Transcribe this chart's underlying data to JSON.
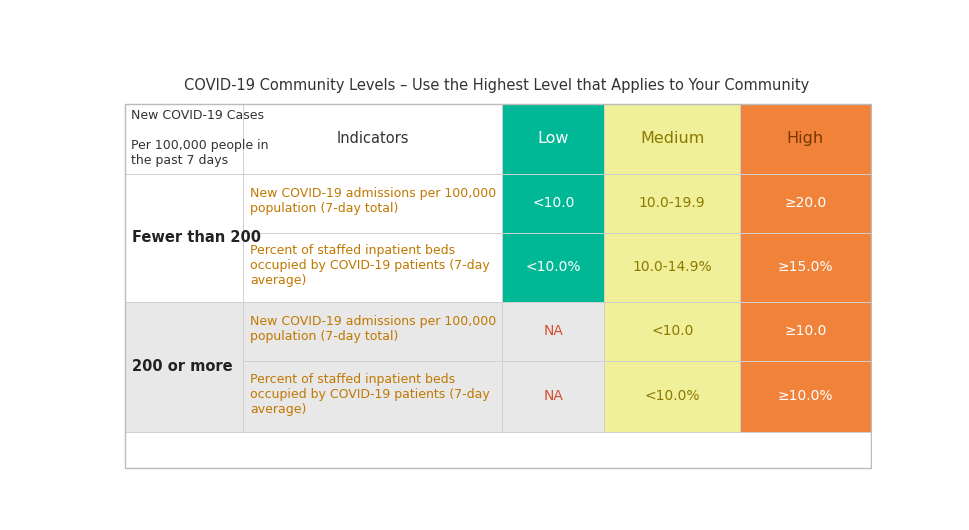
{
  "title": "COVID-19 Community Levels – Use the Highest Level that Applies to Your Community",
  "title_fontsize": 10.5,
  "fig_bg": "#ffffff",
  "col_header_bg": [
    "#00b896",
    "#f0ef9a",
    "#f0823a"
  ],
  "col_header_text": [
    "Low",
    "Medium",
    "High"
  ],
  "col_header_text_color": [
    "#ffffff",
    "#8c7a00",
    "#7a3800"
  ],
  "cell_low_bg_active": "#00b896",
  "cell_low_text_active": "#ffffff",
  "cell_medium_bg": "#f0ef9a",
  "cell_medium_text": "#8c7a00",
  "cell_high_bg": "#f0823a",
  "cell_high_text": "#ffffff",
  "na_text_color": "#d05030",
  "border_color": "#d0d0d0",
  "group_label_color": "#222222",
  "group1_bg": "#ffffff",
  "group2_bg": "#e8e8e8",
  "indicator_color": "#c07800",
  "header_label_color": "#333333",
  "rows": [
    {
      "group_label": "Fewer than 200",
      "indicators": [
        "New COVID-19 admissions per 100,000\npopulation (7-day total)",
        "Percent of staffed inpatient beds\noccupied by COVID-19 patients (7-day\naverage)"
      ],
      "low": [
        "<10.0",
        "<10.0%"
      ],
      "medium": [
        "10.0-19.9",
        "10.0-14.9%"
      ],
      "high": [
        "≥20.0",
        "≥15.0%"
      ],
      "low_active": [
        true,
        true
      ]
    },
    {
      "group_label": "200 or more",
      "indicators": [
        "New COVID-19 admissions per 100,000\npopulation (7-day total)",
        "Percent of staffed inpatient beds\noccupied by COVID-19 patients (7-day\naverage)"
      ],
      "low": [
        "NA",
        "NA"
      ],
      "medium": [
        "<10.0",
        "<10.0%"
      ],
      "high": [
        "≥10.0",
        "≥10.0%"
      ],
      "low_active": [
        false,
        false
      ]
    }
  ]
}
